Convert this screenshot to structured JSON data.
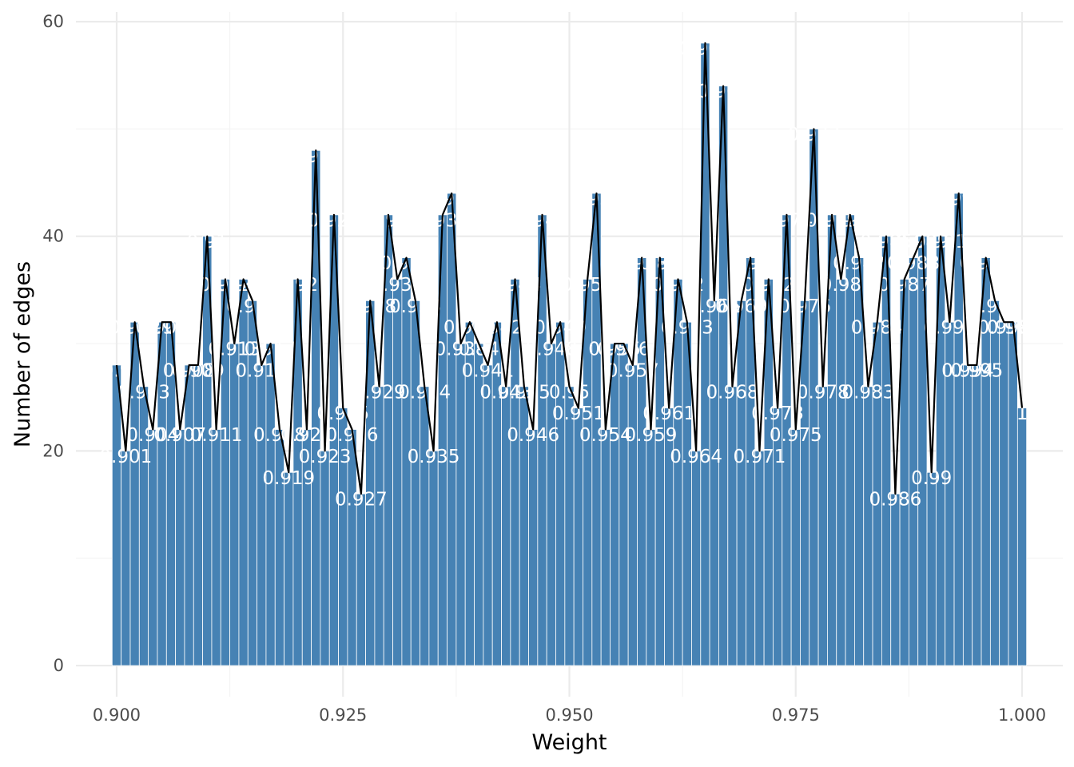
{
  "chart_data": {
    "type": "bar",
    "xlabel": "Weight",
    "ylabel": "Number of edges",
    "xlim": [
      0.8955,
      1.0045
    ],
    "ylim": [
      -2.9,
      60.9
    ],
    "x_ticks": [
      "0.900",
      "0.925",
      "0.950",
      "0.975",
      "1.000"
    ],
    "y_ticks": [
      "0",
      "20",
      "40",
      "60"
    ],
    "grid": true,
    "bar_color": "#4682b4",
    "label_color": "#ffffff",
    "line_color": "#000000",
    "overlay": "line through bar tops",
    "x": [
      0.9,
      0.901,
      0.902,
      0.903,
      0.904,
      0.905,
      0.906,
      0.907,
      0.908,
      0.909,
      0.91,
      0.911,
      0.912,
      0.913,
      0.914,
      0.915,
      0.916,
      0.917,
      0.918,
      0.919,
      0.92,
      0.921,
      0.922,
      0.923,
      0.924,
      0.925,
      0.926,
      0.927,
      0.928,
      0.929,
      0.93,
      0.931,
      0.932,
      0.933,
      0.934,
      0.935,
      0.936,
      0.937,
      0.938,
      0.939,
      0.94,
      0.941,
      0.942,
      0.943,
      0.944,
      0.945,
      0.946,
      0.947,
      0.948,
      0.949,
      0.95,
      0.951,
      0.952,
      0.953,
      0.954,
      0.955,
      0.956,
      0.957,
      0.958,
      0.959,
      0.96,
      0.961,
      0.962,
      0.963,
      0.964,
      0.965,
      0.966,
      0.967,
      0.968,
      0.969,
      0.97,
      0.971,
      0.972,
      0.973,
      0.974,
      0.975,
      0.976,
      0.977,
      0.978,
      0.979,
      0.98,
      0.981,
      0.982,
      0.983,
      0.984,
      0.985,
      0.986,
      0.987,
      0.988,
      0.989,
      0.99,
      0.991,
      0.992,
      0.993,
      0.994,
      0.995,
      0.996,
      0.997,
      0.998,
      0.999,
      1.0
    ],
    "labels": [
      "0.9",
      "0.901",
      "0.902",
      "0.903",
      "0.904",
      "0.905",
      "0.906",
      "0.907",
      "0.908",
      "0.909",
      "0.91",
      "0.911",
      "0.912",
      "0.913",
      "0.914",
      "0.915",
      "0.916",
      "0.917",
      "0.918",
      "0.919",
      "0.92",
      "0.921",
      "0.922",
      "0.923",
      "0.924",
      "0.925",
      "0.926",
      "0.927",
      "0.928",
      "0.929",
      "0.93",
      "0.931",
      "0.932",
      "0.933",
      "0.934",
      "0.935",
      "0.936",
      "0.937",
      "0.938",
      "0.939",
      "0.94",
      "0.941",
      "0.942",
      "0.943",
      "0.944",
      "0.945",
      "0.946",
      "0.947",
      "0.948",
      "0.949",
      "0.95",
      "0.951",
      "0.952",
      "0.953",
      "0.954",
      "0.955",
      "0.956",
      "0.957",
      "0.958",
      "0.959",
      "0.96",
      "0.961",
      "0.962",
      "0.963",
      "0.964",
      "0.965",
      "0.966",
      "0.967",
      "0.968",
      "0.969",
      "0.97",
      "0.971",
      "0.972",
      "0.973",
      "0.974",
      "0.975",
      "0.976",
      "0.977",
      "0.978",
      "0.979",
      "0.98",
      "0.981",
      "0.982",
      "0.983",
      "0.984",
      "0.985",
      "0.986",
      "0.987",
      "0.988",
      "0.989",
      "0.99",
      "0.991",
      "0.992",
      "0.993",
      "0.994",
      "0.995",
      "0.996",
      "0.997",
      "0.998",
      "0.999",
      "1"
    ],
    "values": [
      28,
      20,
      32,
      26,
      22,
      32,
      32,
      22,
      28,
      28,
      40,
      22,
      36,
      30,
      36,
      34,
      28,
      30,
      22,
      18,
      36,
      22,
      48,
      20,
      42,
      24,
      22,
      16,
      34,
      26,
      42,
      36,
      38,
      34,
      26,
      20,
      42,
      44,
      30,
      32,
      30,
      28,
      32,
      26,
      36,
      26,
      22,
      42,
      30,
      32,
      26,
      24,
      36,
      44,
      22,
      30,
      30,
      28,
      38,
      22,
      38,
      24,
      36,
      32,
      20,
      58,
      34,
      54,
      26,
      34,
      38,
      20,
      36,
      24,
      42,
      22,
      34,
      50,
      26,
      42,
      36,
      42,
      38,
      26,
      32,
      40,
      16,
      36,
      38,
      40,
      18,
      40,
      32,
      44,
      28,
      28,
      38,
      34,
      32,
      32,
      24
    ]
  }
}
